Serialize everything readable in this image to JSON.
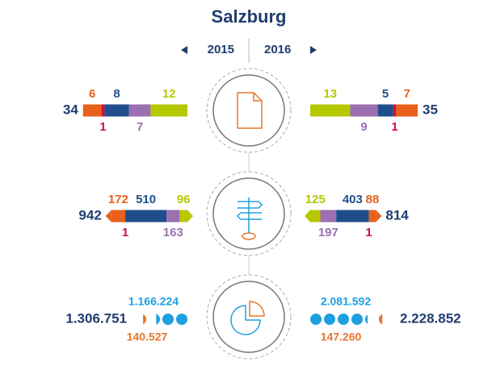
{
  "title": "Salzburg",
  "years": {
    "left": "2015",
    "right": "2016"
  },
  "rows": [
    {
      "left": {
        "total": 34,
        "segments": [
          {
            "value": 6,
            "color": "#e8601c"
          },
          {
            "value": 1,
            "color": "#d0103a"
          },
          {
            "value": 8,
            "color": "#1f4e8c"
          },
          {
            "value": 7,
            "color": "#9b6fb0"
          },
          {
            "value": 12,
            "color": "#b5c800"
          }
        ]
      },
      "right": {
        "total": 35,
        "segments": [
          {
            "value": 13,
            "color": "#b5c800"
          },
          {
            "value": 9,
            "color": "#9b6fb0"
          },
          {
            "value": 5,
            "color": "#1f4e8c"
          },
          {
            "value": 1,
            "color": "#d0103a"
          },
          {
            "value": 7,
            "color": "#e8601c"
          }
        ]
      }
    },
    {
      "left": {
        "total": 942,
        "segments": [
          {
            "value": 172,
            "color": "#e8601c"
          },
          {
            "value": 1,
            "color": "#d0103a"
          },
          {
            "value": 510,
            "color": "#1f4e8c"
          },
          {
            "value": 163,
            "color": "#9b6fb0"
          },
          {
            "value": 96,
            "color": "#b5c800"
          }
        ]
      },
      "right": {
        "total": 814,
        "segments": [
          {
            "value": 125,
            "color": "#b5c800"
          },
          {
            "value": 197,
            "color": "#9b6fb0"
          },
          {
            "value": 403,
            "color": "#1f4e8c"
          },
          {
            "value": 1,
            "color": "#d0103a"
          },
          {
            "value": 88,
            "color": "#e8601c"
          }
        ]
      }
    },
    {
      "left": {
        "total": 1306751,
        "total_label": "1.306.751",
        "parts": [
          {
            "value": 140527,
            "value_label": "140.527",
            "color": "#e8752a"
          },
          {
            "value": 1166224,
            "value_label": "1.166.224",
            "color": "#1ea0e0"
          }
        ]
      },
      "right": {
        "total": 2228852,
        "total_label": "2.228.852",
        "parts": [
          {
            "value": 2081592,
            "value_label": "2.081.592",
            "color": "#1ea0e0"
          },
          {
            "value": 147260,
            "value_label": "147.260",
            "color": "#e8752a"
          }
        ]
      }
    }
  ]
}
